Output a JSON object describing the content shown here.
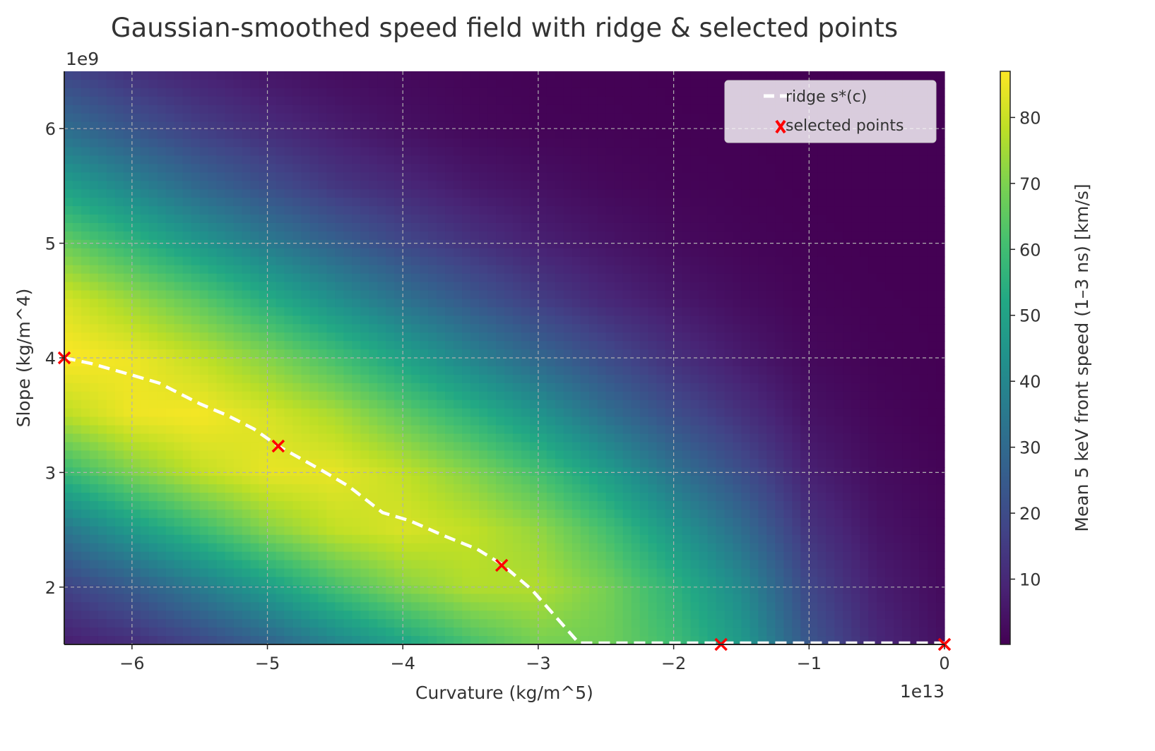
{
  "chart_data": {
    "type": "heatmap",
    "title": "Gaussian-smoothed speed field with ridge & selected points",
    "xlabel": "Curvature (kg/m^5)",
    "ylabel": "Slope (kg/m^4)",
    "x_offset_label": "1e13",
    "y_offset_label": "1e9",
    "xlim": [
      -6.5,
      0
    ],
    "ylim": [
      1.5,
      6.5
    ],
    "x_ticks": [
      -6,
      -5,
      -4,
      -3,
      -2,
      -1,
      0
    ],
    "x_tick_labels": [
      "−6",
      "−5",
      "−4",
      "−3",
      "−2",
      "−1",
      "0"
    ],
    "y_ticks": [
      2,
      3,
      4,
      5,
      6
    ],
    "y_tick_labels": [
      "2",
      "3",
      "4",
      "5",
      "6"
    ],
    "grid": true,
    "colormap": "viridis",
    "colorbar": {
      "label": "Mean 5 keV front speed (1–3 ns) [km/s]",
      "range": [
        0.1,
        87
      ],
      "ticks": [
        10,
        20,
        30,
        40,
        50,
        60,
        70,
        80
      ],
      "tick_labels": [
        "10",
        "20",
        "30",
        "40",
        "50",
        "60",
        "70",
        "80"
      ]
    },
    "grid_x": [
      -6.5,
      -6,
      -5.5,
      -5,
      -4.5,
      -4,
      -3.5,
      -3,
      -2.5,
      -2,
      -1.5,
      -1,
      -0.5,
      0
    ],
    "grid_y": [
      6.5,
      6,
      5.5,
      5,
      4.5,
      4,
      3.5,
      3,
      2.5,
      2,
      1.5
    ],
    "z_by_column": [
      [
        18,
        31,
        49,
        67,
        82,
        87,
        78,
        58,
        34,
        17,
        7
      ],
      [
        12,
        23,
        39,
        57,
        74,
        85,
        85,
        70,
        47,
        25,
        11
      ],
      [
        8,
        16,
        29,
        46,
        65,
        79,
        86,
        79,
        59,
        36,
        18
      ],
      [
        5,
        11,
        21,
        36,
        54,
        71,
        82,
        84,
        71,
        48,
        27
      ],
      [
        3,
        7,
        14,
        27,
        43,
        61,
        76,
        84,
        79,
        61,
        39
      ],
      [
        2,
        4,
        10,
        19,
        33,
        50,
        66,
        79,
        82,
        71,
        50
      ],
      [
        1,
        2,
        6,
        13,
        24,
        39,
        56,
        71,
        79,
        77,
        61
      ],
      [
        0.5,
        1,
        4,
        8,
        16,
        29,
        45,
        61,
        73,
        77,
        69
      ],
      [
        0.3,
        0.7,
        2,
        5,
        10,
        20,
        32,
        48,
        61,
        69,
        68
      ],
      [
        0.1,
        0.3,
        1,
        2.5,
        6,
        12,
        21,
        33,
        46,
        56,
        60
      ],
      [
        0.1,
        0.2,
        0.4,
        1.2,
        3,
        6.5,
        12.5,
        21,
        31,
        41,
        47
      ],
      [
        0.1,
        0.1,
        0.1,
        0.4,
        1,
        2.2,
        4.5,
        8,
        13,
        18.5,
        23
      ],
      [
        0.1,
        0.1,
        0.1,
        0.1,
        0.3,
        0.7,
        1.5,
        2.9,
        4.9,
        7.4,
        10
      ],
      [
        0.1,
        0.1,
        0.1,
        0.1,
        0.1,
        0.1,
        0.2,
        0.9,
        1.6,
        2.5,
        3.6
      ]
    ],
    "ridge": {
      "name": "ridge s*(c)",
      "color": "#ffffff",
      "x": [
        -6.5,
        -6.3,
        -6.0,
        -5.8,
        -5.5,
        -5.3,
        -5.1,
        -4.92,
        -4.6,
        -4.4,
        -4.15,
        -3.95,
        -3.7,
        -3.45,
        -3.27,
        -3.05,
        -2.9,
        -2.7,
        0
      ],
      "y": [
        4.0,
        3.95,
        3.85,
        3.78,
        3.6,
        3.5,
        3.38,
        3.23,
        3.02,
        2.88,
        2.65,
        2.58,
        2.45,
        2.33,
        2.2,
        1.98,
        1.78,
        1.5,
        1.5
      ]
    },
    "selected_points": {
      "name": "selected points",
      "color": "#ff0000",
      "x": [
        -6.5,
        -4.92,
        -3.27,
        -1.65,
        0
      ],
      "y": [
        4.0,
        3.23,
        2.19,
        1.5,
        1.5
      ]
    },
    "legend_placement": "top-right"
  }
}
